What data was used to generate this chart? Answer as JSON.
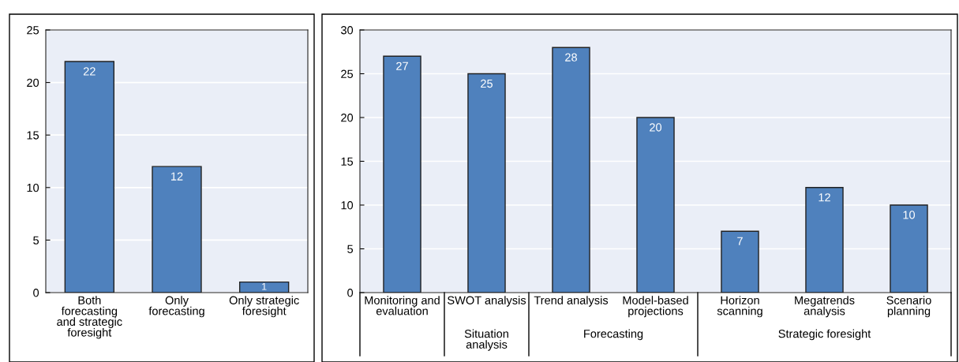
{
  "chart_data": [
    {
      "type": "bar",
      "categories": [
        "Both\nforecasting\nand strategic\nforesight",
        "Only\nforecasting",
        "Only strategic\nforesight"
      ],
      "values": [
        22,
        12,
        1
      ],
      "color": "#4f81bd",
      "ylim": [
        0,
        25
      ],
      "yticks": [
        0,
        5,
        10,
        15,
        20,
        25
      ],
      "grid": "y",
      "data_labels": true
    },
    {
      "type": "bar",
      "categories": [
        "Monitoring and\nevaluation",
        "SWOT analysis",
        "Trend analysis",
        "Model-based\nprojections",
        "Horizon\nscanning",
        "Megatrends\nanalysis",
        "Scenario\nplanning"
      ],
      "values": [
        27,
        25,
        28,
        20,
        7,
        12,
        10
      ],
      "color": "#4f81bd",
      "ylim": [
        0,
        30
      ],
      "yticks": [
        0,
        5,
        10,
        15,
        20,
        25,
        30
      ],
      "grid": "y",
      "data_labels": true,
      "annotations": [
        "Situation\nanalysis",
        "Forecasting",
        "Strategic foresight"
      ]
    }
  ]
}
